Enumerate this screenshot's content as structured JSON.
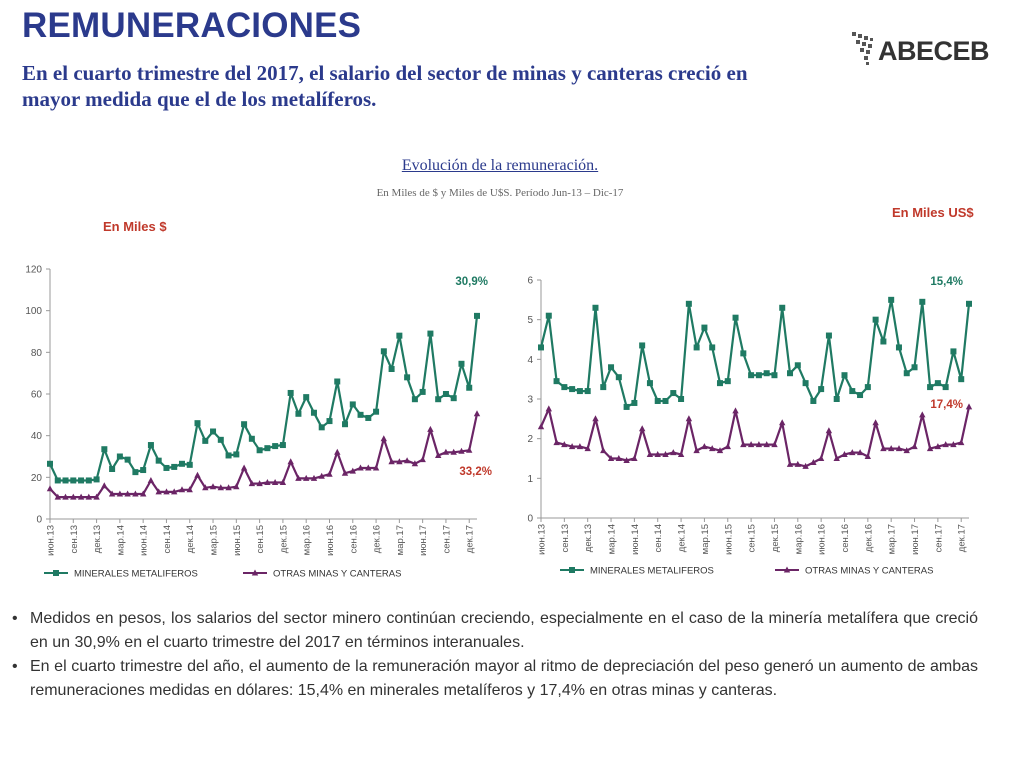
{
  "header": {
    "title": "REMUNERACIONES",
    "subtitle": "En el cuarto trimestre del 2017, el salario del sector de minas y canteras creció en mayor medida que el de los metalíferos."
  },
  "logo": {
    "text": "ABECEB"
  },
  "chart_header": {
    "title": "Evolución de la remuneración.",
    "subtitle": "En Miles de $ y Miles de U$S. Período Jun-13 – Dic-17"
  },
  "units": {
    "left": "En Miles  $",
    "right": "En Miles US$"
  },
  "colors": {
    "series1": "#1f7a63",
    "series2": "#6b2566",
    "title": "#2b3a8c",
    "unit": "#c0392b",
    "annotation": "#c0392b"
  },
  "chart_data": [
    {
      "type": "line",
      "unit": "En Miles  $",
      "ylim": [
        0,
        120
      ],
      "yticks": [
        0,
        20,
        40,
        60,
        80,
        100,
        120
      ],
      "xtick_labels": [
        "июн.13",
        "сен.13",
        "дек.13",
        "мар.14",
        "июн.14",
        "сен.14",
        "дек.14",
        "мар.15",
        "июн.15",
        "сен.15",
        "дек.15",
        "мар.16",
        "июн.16",
        "сен.16",
        "дек.16",
        "мар.17",
        "июн.17",
        "сен.17",
        "дек.17"
      ],
      "grid": false,
      "legend": "bottom",
      "annotations": {
        "series1_end": "30,9%",
        "series2_end": "33,2%"
      },
      "series": [
        {
          "name": "MINERALES METALIFEROS",
          "values": [
            26.5,
            18.5,
            18.5,
            18.5,
            18.5,
            18.5,
            19,
            33.5,
            24,
            30,
            28.5,
            22.5,
            23.5,
            35.5,
            28,
            24.5,
            25,
            26.5,
            26,
            46,
            37.5,
            42,
            38,
            30.5,
            31,
            45.5,
            38.5,
            33,
            34,
            35,
            35.5,
            60.5,
            50.5,
            58.5,
            51,
            44,
            47,
            66,
            45.5,
            55,
            50,
            48.5,
            51.5,
            80.5,
            72,
            88,
            68,
            57.5,
            61,
            89,
            57.5,
            60,
            58,
            74.5,
            63,
            97.5
          ]
        },
        {
          "name": "OTRAS MINAS Y CANTERAS",
          "values": [
            14.5,
            10.5,
            10.5,
            10.5,
            10.5,
            10.5,
            10.5,
            16,
            12,
            12,
            12,
            12,
            12,
            18.5,
            13,
            13,
            13,
            14,
            14,
            21,
            15,
            15.5,
            15,
            15,
            15.5,
            24.5,
            17,
            17,
            17.5,
            17.5,
            17.5,
            27.5,
            19.5,
            19.5,
            19.5,
            20.5,
            21.5,
            32,
            22,
            23,
            24.5,
            24.5,
            24.5,
            38.5,
            27.5,
            27.5,
            28,
            26.5,
            28.5,
            43,
            30.5,
            32,
            32,
            32.5,
            33,
            50.5
          ]
        }
      ]
    },
    {
      "type": "line",
      "unit": "En Miles US$",
      "ylim": [
        0,
        6
      ],
      "yticks": [
        0,
        1,
        2,
        3,
        4,
        5,
        6
      ],
      "xtick_labels": [
        "июн.13",
        "сен.13",
        "дек.13",
        "мар.14",
        "июн.14",
        "сен.14",
        "дек.14",
        "мар.15",
        "июн.15",
        "сен.15",
        "дек.15",
        "мар.16",
        "июн.16",
        "сен.16",
        "дек.16",
        "мар.17",
        "июн.17",
        "сен.17",
        "дек.17"
      ],
      "grid": false,
      "legend": "bottom",
      "annotations": {
        "series1_end": "15,4%",
        "series2_end": "17,4%"
      },
      "series": [
        {
          "name": "MINERALES METALIFEROS",
          "values": [
            4.3,
            5.1,
            3.45,
            3.3,
            3.25,
            3.2,
            3.2,
            5.3,
            3.3,
            3.8,
            3.55,
            2.8,
            2.9,
            4.35,
            3.4,
            2.95,
            2.95,
            3.15,
            3,
            5.4,
            4.3,
            4.8,
            4.3,
            3.4,
            3.45,
            5.05,
            4.15,
            3.6,
            3.6,
            3.65,
            3.6,
            5.3,
            3.65,
            3.85,
            3.4,
            2.95,
            3.25,
            4.6,
            3,
            3.6,
            3.2,
            3.1,
            3.3,
            5,
            4.45,
            5.5,
            4.3,
            3.65,
            3.8,
            5.45,
            3.3,
            3.4,
            3.3,
            4.2,
            3.5,
            5.4
          ]
        },
        {
          "name": "OTRAS MINAS Y CANTERAS",
          "values": [
            2.3,
            2.75,
            1.9,
            1.85,
            1.8,
            1.8,
            1.75,
            2.5,
            1.7,
            1.5,
            1.5,
            1.45,
            1.5,
            2.25,
            1.6,
            1.6,
            1.6,
            1.65,
            1.6,
            2.5,
            1.7,
            1.8,
            1.75,
            1.7,
            1.8,
            2.7,
            1.85,
            1.85,
            1.85,
            1.85,
            1.85,
            2.4,
            1.35,
            1.35,
            1.3,
            1.4,
            1.5,
            2.2,
            1.5,
            1.6,
            1.65,
            1.65,
            1.55,
            2.4,
            1.75,
            1.75,
            1.75,
            1.7,
            1.8,
            2.6,
            1.75,
            1.8,
            1.85,
            1.85,
            1.9,
            2.8
          ]
        }
      ]
    }
  ],
  "bullets": [
    "Medidos en pesos, los salarios del sector minero continúan creciendo, especialmente en el caso de la minería metalífera que creció en un 30,9% en el cuarto trimestre del 2017 en términos interanuales.",
    "En el cuarto trimestre del año, el aumento de la remuneración mayor al ritmo de depreciación del peso generó un aumento de ambas remuneraciones medidas en dólares: 15,4% en minerales metalíferos y 17,4% en otras minas y canteras."
  ]
}
